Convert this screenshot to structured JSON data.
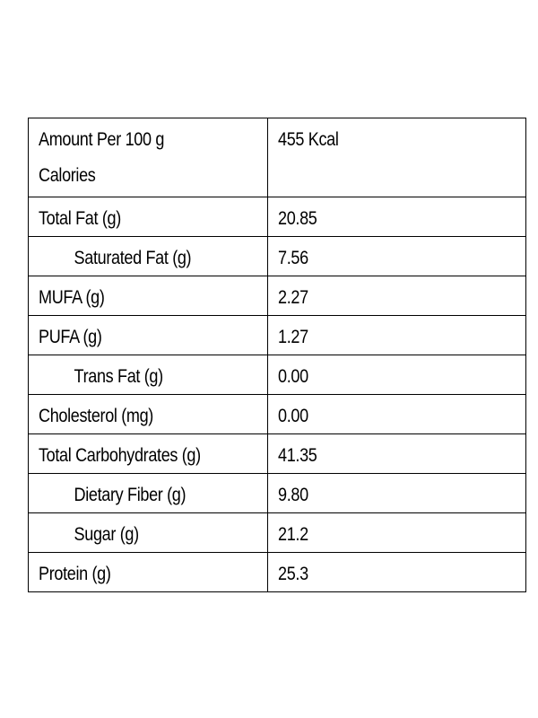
{
  "header": {
    "label_line1": "Amount Per 100 g",
    "label_line2": "Calories",
    "value": "455 Kcal"
  },
  "rows": [
    {
      "label": "Total Fat (g)",
      "value": "20.85",
      "indent": false
    },
    {
      "label": "Saturated Fat (g)",
      "value": "7.56",
      "indent": true
    },
    {
      "label": "MUFA (g)",
      "value": "2.27",
      "indent": false
    },
    {
      "label": "PUFA (g)",
      "value": "1.27",
      "indent": false
    },
    {
      "label": "Trans Fat (g)",
      "value": "0.00",
      "indent": true
    },
    {
      "label": "Cholesterol (mg)",
      "value": "0.00",
      "indent": false
    },
    {
      "label": "Total Carbohydrates (g)",
      "value": "41.35",
      "indent": false
    },
    {
      "label": "Dietary Fiber (g)",
      "value": "9.80",
      "indent": true
    },
    {
      "label": "Sugar (g)",
      "value": "21.2",
      "indent": true
    },
    {
      "label": "Protein (g)",
      "value": "25.3",
      "indent": false
    }
  ]
}
